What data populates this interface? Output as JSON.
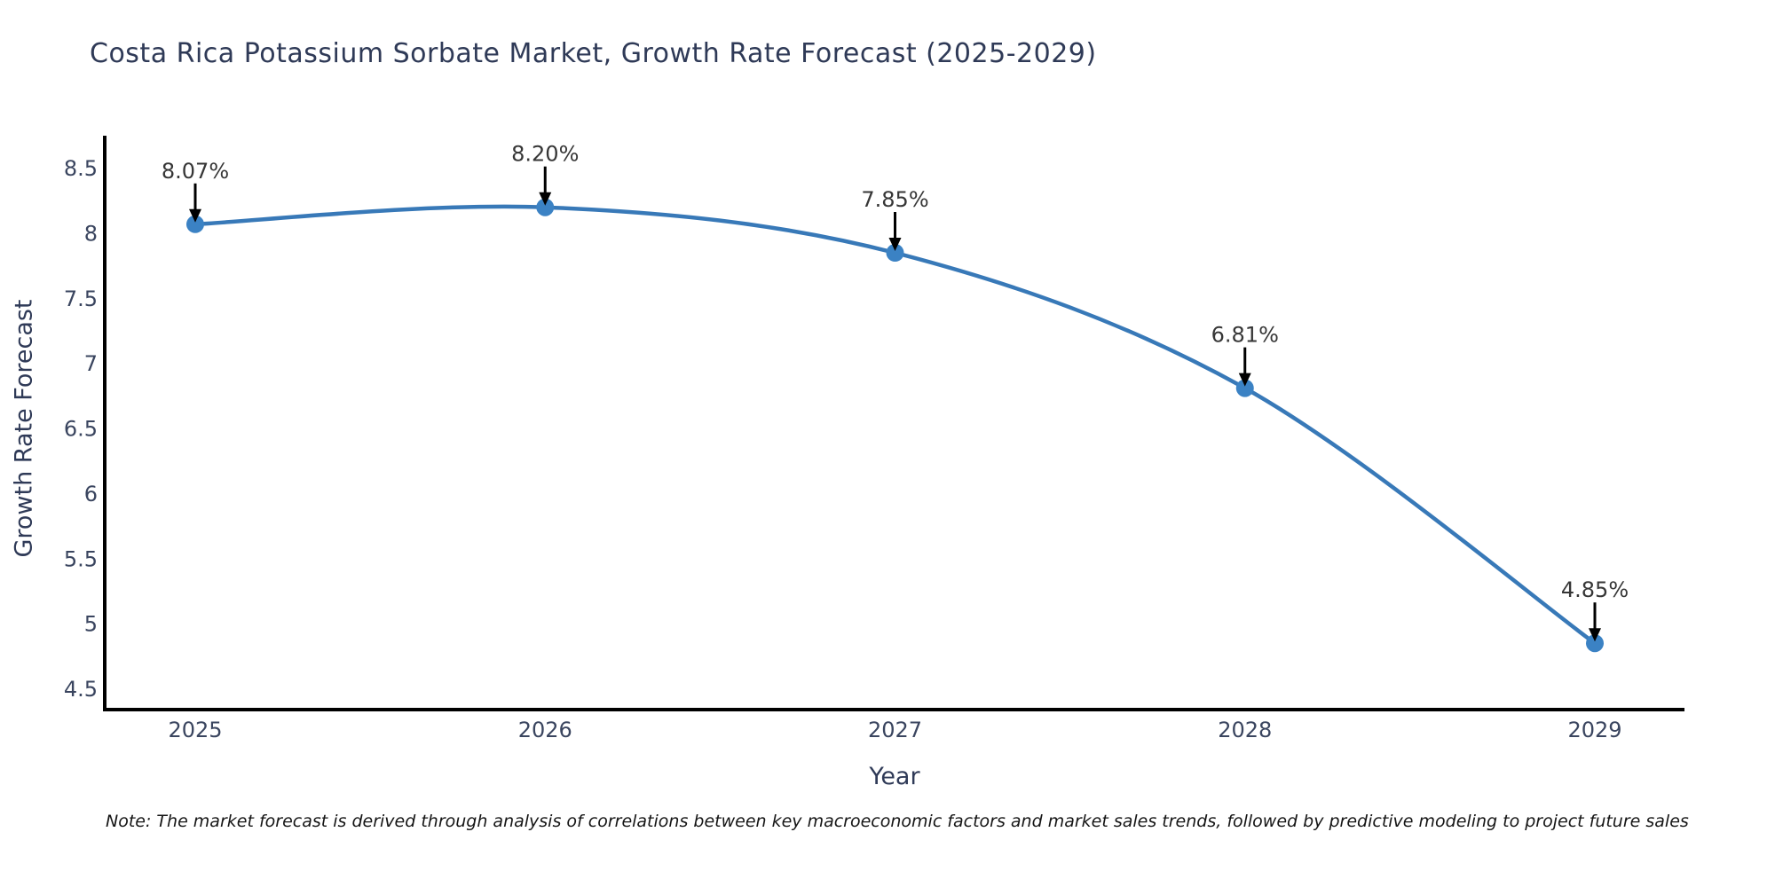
{
  "note": "Note: The market forecast is derived through analysis of correlations between key macroeconomic factors and market sales trends, followed by predictive modeling to project future sales",
  "chart_data": {
    "type": "line",
    "title": "Costa Rica Potassium Sorbate Market, Growth Rate Forecast (2025-2029)",
    "xlabel": "Year",
    "ylabel": "Growth Rate Forecast",
    "x": [
      "2025",
      "2026",
      "2027",
      "2028",
      "2029"
    ],
    "values": [
      8.07,
      8.2,
      7.85,
      6.81,
      4.85
    ],
    "point_labels": [
      "8.07%",
      "8.20%",
      "7.85%",
      "6.81%",
      "4.85%"
    ],
    "yticks": [
      "4.5",
      "5",
      "5.5",
      "6",
      "6.5",
      "7",
      "7.5",
      "8",
      "8.5"
    ],
    "ylim": [
      4.34,
      8.75
    ],
    "line_shape": "spline",
    "grid": false,
    "legend": false,
    "markers": true,
    "annotation_arrows": true,
    "colors": {
      "line": "#3879b8",
      "marker": "#3b82c4",
      "axis": "#000000",
      "tick_text": "#3a455f",
      "annotation_text": "#363636",
      "arrow": "#000000",
      "background": "#ffffff"
    }
  }
}
